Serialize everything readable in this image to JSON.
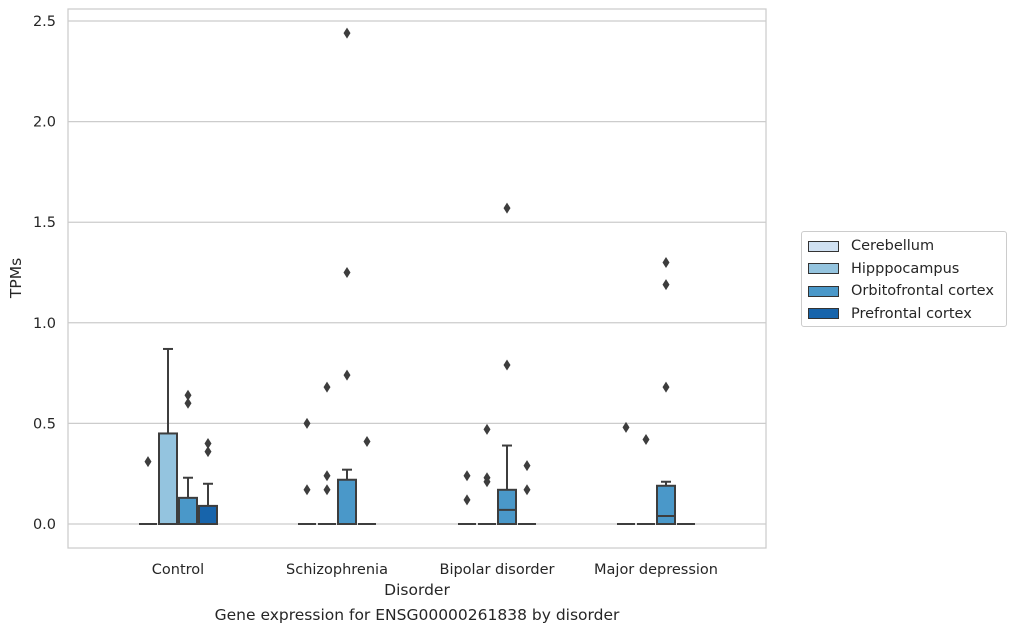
{
  "chart_data": {
    "type": "box",
    "title": "",
    "caption": "Gene expression for ENSG00000261838 by disorder",
    "xlabel": "Disorder",
    "ylabel": "TPMs",
    "ylim": [
      -0.12,
      2.57
    ],
    "yticks": [
      "0.0",
      "0.5",
      "1.0",
      "1.5",
      "2.0",
      "2.5"
    ],
    "yticks_values": [
      0,
      0.5,
      1.0,
      1.5,
      2.0,
      2.5
    ],
    "grid": true,
    "legend_position": "right",
    "categories": [
      "Control",
      "Schizophrenia",
      "Bipolar disorder",
      "Major depression"
    ],
    "series": [
      {
        "name": "Cerebellum",
        "color": "#d0e1f2",
        "boxes": [
          {
            "q1": 0,
            "median": 0,
            "q3": 0,
            "whisker_low": 0,
            "whisker_high": 0,
            "outliers": [
              0.31
            ]
          },
          {
            "q1": 0,
            "median": 0,
            "q3": 0,
            "whisker_low": 0,
            "whisker_high": 0,
            "outliers": [
              0.5,
              0.17
            ]
          },
          {
            "q1": 0,
            "median": 0,
            "q3": 0,
            "whisker_low": 0,
            "whisker_high": 0,
            "outliers": [
              0.24,
              0.12
            ]
          },
          {
            "q1": 0,
            "median": 0,
            "q3": 0,
            "whisker_low": 0,
            "whisker_high": 0,
            "outliers": [
              0.48
            ]
          }
        ]
      },
      {
        "name": "Hipppocampus",
        "color": "#94c4df",
        "boxes": [
          {
            "q1": 0,
            "median": 0,
            "q3": 0.45,
            "whisker_low": 0,
            "whisker_high": 0.87,
            "outliers": []
          },
          {
            "q1": 0,
            "median": 0,
            "q3": 0,
            "whisker_low": 0,
            "whisker_high": 0,
            "outliers": [
              0.68,
              0.24,
              0.17
            ]
          },
          {
            "q1": 0,
            "median": 0,
            "q3": 0,
            "whisker_low": 0,
            "whisker_high": 0,
            "outliers": [
              0.47,
              0.23,
              0.21
            ]
          },
          {
            "q1": 0,
            "median": 0,
            "q3": 0,
            "whisker_low": 0,
            "whisker_high": 0,
            "outliers": [
              0.42
            ]
          }
        ]
      },
      {
        "name": "Orbitofrontal cortex",
        "color": "#4a98c9",
        "boxes": [
          {
            "q1": 0,
            "median": 0,
            "q3": 0.13,
            "whisker_low": 0,
            "whisker_high": 0.23,
            "outliers": [
              0.64,
              0.6
            ]
          },
          {
            "q1": 0,
            "median": 0,
            "q3": 0.22,
            "whisker_low": 0,
            "whisker_high": 0.27,
            "outliers": [
              2.44,
              1.25,
              0.74
            ]
          },
          {
            "q1": 0,
            "median": 0.07,
            "q3": 0.17,
            "whisker_low": 0,
            "whisker_high": 0.39,
            "outliers": [
              1.57,
              0.79
            ]
          },
          {
            "q1": 0,
            "median": 0.04,
            "q3": 0.19,
            "whisker_low": 0,
            "whisker_high": 0.21,
            "outliers": [
              1.3,
              1.19,
              0.68
            ]
          }
        ]
      },
      {
        "name": "Prefrontal cortex",
        "color": "#1764ab",
        "boxes": [
          {
            "q1": 0,
            "median": 0,
            "q3": 0.09,
            "whisker_low": 0,
            "whisker_high": 0.2,
            "outliers": [
              0.4,
              0.36
            ]
          },
          {
            "q1": 0,
            "median": 0,
            "q3": 0,
            "whisker_low": 0,
            "whisker_high": 0,
            "outliers": [
              0.41
            ]
          },
          {
            "q1": 0,
            "median": 0,
            "q3": 0,
            "whisker_low": 0,
            "whisker_high": 0,
            "outliers": [
              0.29,
              0.17
            ]
          },
          {
            "q1": 0,
            "median": 0,
            "q3": 0,
            "whisker_low": 0,
            "whisker_high": 0,
            "outliers": []
          }
        ]
      }
    ]
  }
}
